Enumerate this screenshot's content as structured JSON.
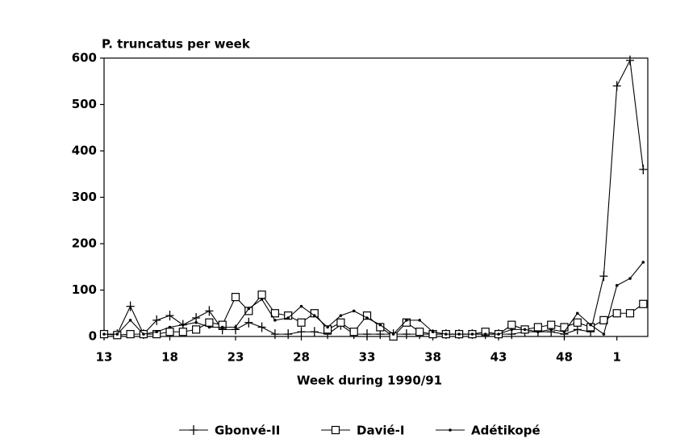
{
  "chart_data": {
    "type": "line",
    "title": "P. truncatus per week",
    "x_label": "Week during 1990/91",
    "categories": [
      "13",
      null,
      null,
      null,
      null,
      "18",
      null,
      null,
      null,
      null,
      "23",
      null,
      null,
      null,
      null,
      "28",
      null,
      null,
      null,
      null,
      "33",
      null,
      null,
      null,
      null,
      "38",
      null,
      null,
      null,
      null,
      "43",
      null,
      null,
      null,
      null,
      "48",
      null,
      null,
      null,
      "1",
      null,
      null
    ],
    "series": [
      {
        "name": "Gbonvé-II",
        "color": "#000000",
        "marker": "plus",
        "values": [
          5,
          5,
          65,
          5,
          35,
          45,
          25,
          40,
          55,
          15,
          15,
          30,
          20,
          5,
          5,
          10,
          10,
          5,
          25,
          5,
          5,
          5,
          5,
          5,
          5,
          5,
          5,
          5,
          5,
          5,
          5,
          5,
          10,
          10,
          10,
          5,
          15,
          10,
          130,
          540,
          595,
          360
        ]
      },
      {
        "name": "Davié-I",
        "color": "#000000",
        "marker": "square",
        "values": [
          5,
          3,
          5,
          5,
          5,
          10,
          10,
          15,
          30,
          25,
          85,
          55,
          90,
          50,
          45,
          30,
          50,
          15,
          30,
          10,
          45,
          20,
          0,
          30,
          10,
          5,
          5,
          5,
          5,
          10,
          5,
          25,
          15,
          20,
          25,
          20,
          30,
          20,
          35,
          50,
          50,
          70
        ]
      },
      {
        "name": "Adétikopé",
        "color": "#000000",
        "marker": "dot",
        "values": [
          5,
          5,
          35,
          5,
          10,
          20,
          25,
          30,
          20,
          20,
          20,
          60,
          80,
          35,
          40,
          65,
          45,
          20,
          45,
          55,
          40,
          25,
          5,
          35,
          35,
          10,
          5,
          5,
          5,
          5,
          5,
          15,
          15,
          10,
          15,
          10,
          50,
          25,
          5,
          110,
          125,
          160
        ]
      }
    ],
    "ylim": [
      0,
      600
    ],
    "yticks": [
      0,
      100,
      200,
      300,
      400,
      500,
      600
    ],
    "grid": false,
    "legend": "bottom"
  }
}
